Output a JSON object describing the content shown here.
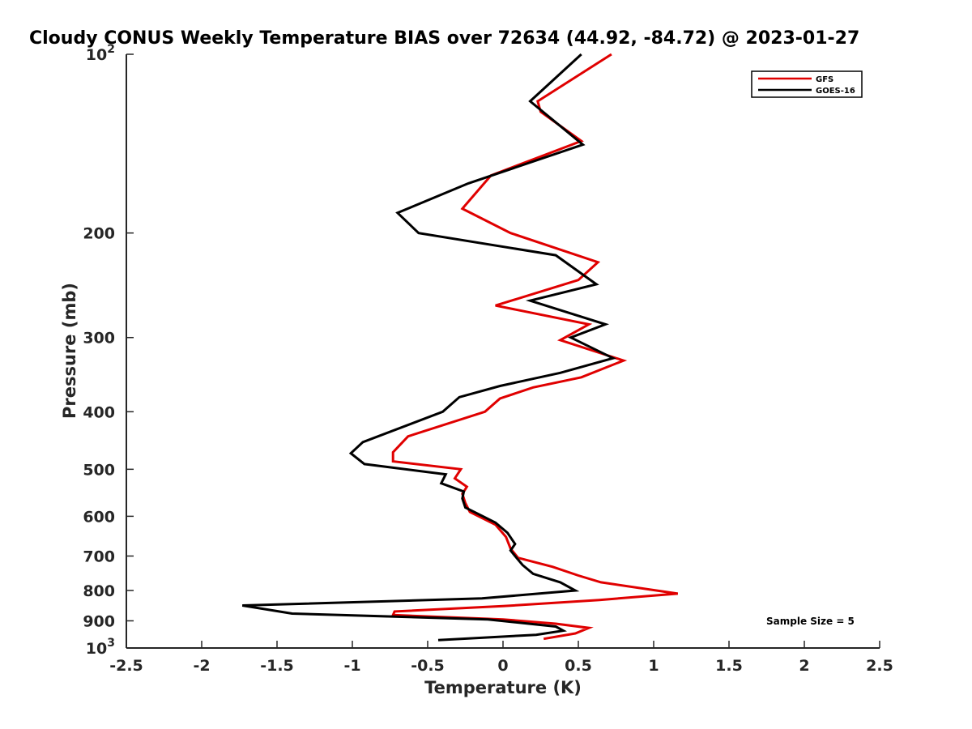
{
  "chart_data": {
    "type": "line",
    "title": "Cloudy CONUS Weekly Temperature BIAS over 72634 (44.92, -84.72) @ 2023-01-27",
    "xlabel": "Temperature (K)",
    "ylabel": "Pressure (mb)",
    "xlim": [
      -2.5,
      2.5
    ],
    "ylim": [
      100,
      1000
    ],
    "yscale": "log",
    "yreversed": true,
    "grid": false,
    "legend_position": "top-right",
    "x_ticks": [
      -2.5,
      -2,
      -1.5,
      -1,
      -0.5,
      0,
      0.5,
      1,
      1.5,
      2,
      2.5
    ],
    "x_tick_labels": [
      "-2.5",
      "-2",
      "-1.5",
      "-1",
      "-0.5",
      "0",
      "0.5",
      "1",
      "1.5",
      "2",
      "2.5"
    ],
    "y_ticks": [
      {
        "value": 100,
        "base": "10",
        "exp": "2"
      },
      {
        "value": 200,
        "label": "200"
      },
      {
        "value": 300,
        "label": "300"
      },
      {
        "value": 400,
        "label": "400"
      },
      {
        "value": 500,
        "label": "500"
      },
      {
        "value": 600,
        "label": "600"
      },
      {
        "value": 700,
        "label": "700"
      },
      {
        "value": 800,
        "label": "800"
      },
      {
        "value": 900,
        "label": "900"
      },
      {
        "value": 1000,
        "base": "10",
        "exp": "3"
      }
    ],
    "annotation": "Sample Size = 5",
    "series": [
      {
        "name": "GFS",
        "color": "#e00000",
        "points": [
          [
            0.72,
            100
          ],
          [
            0.23,
            120
          ],
          [
            0.25,
            125
          ],
          [
            0.52,
            140
          ],
          [
            -0.08,
            160
          ],
          [
            -0.27,
            182
          ],
          [
            0.05,
            200
          ],
          [
            0.63,
            224
          ],
          [
            0.5,
            240
          ],
          [
            -0.05,
            265
          ],
          [
            0.57,
            285
          ],
          [
            0.38,
            303
          ],
          [
            0.8,
            328
          ],
          [
            0.52,
            350
          ],
          [
            0.2,
            364
          ],
          [
            -0.02,
            380
          ],
          [
            -0.12,
            400
          ],
          [
            -0.63,
            440
          ],
          [
            -0.73,
            468
          ],
          [
            -0.73,
            485
          ],
          [
            -0.28,
            500
          ],
          [
            -0.32,
            518
          ],
          [
            -0.24,
            535
          ],
          [
            -0.27,
            550
          ],
          [
            -0.25,
            570
          ],
          [
            -0.22,
            590
          ],
          [
            -0.05,
            620
          ],
          [
            0.02,
            650
          ],
          [
            0.05,
            680
          ],
          [
            0.1,
            705
          ],
          [
            0.33,
            730
          ],
          [
            0.5,
            755
          ],
          [
            0.65,
            775
          ],
          [
            1.16,
            810
          ],
          [
            0.64,
            830
          ],
          [
            0.0,
            850
          ],
          [
            -0.72,
            868
          ],
          [
            -0.73,
            880
          ],
          [
            0.0,
            895
          ],
          [
            0.35,
            910
          ],
          [
            0.57,
            925
          ],
          [
            0.48,
            945
          ],
          [
            0.27,
            965
          ]
        ]
      },
      {
        "name": "GOES-16",
        "color": "#000000",
        "points": [
          [
            0.52,
            100
          ],
          [
            0.18,
            120
          ],
          [
            0.53,
            142
          ],
          [
            -0.23,
            165
          ],
          [
            -0.7,
            185
          ],
          [
            -0.56,
            200
          ],
          [
            0.35,
            218
          ],
          [
            0.62,
            244
          ],
          [
            0.18,
            260
          ],
          [
            0.68,
            285
          ],
          [
            0.45,
            300
          ],
          [
            0.73,
            325
          ],
          [
            0.38,
            344
          ],
          [
            -0.02,
            362
          ],
          [
            -0.29,
            378
          ],
          [
            -0.4,
            400
          ],
          [
            -0.93,
            450
          ],
          [
            -1.01,
            470
          ],
          [
            -0.92,
            490
          ],
          [
            -0.38,
            510
          ],
          [
            -0.41,
            528
          ],
          [
            -0.26,
            545
          ],
          [
            -0.27,
            560
          ],
          [
            -0.25,
            580
          ],
          [
            -0.05,
            615
          ],
          [
            0.03,
            640
          ],
          [
            0.08,
            668
          ],
          [
            0.05,
            685
          ],
          [
            0.09,
            705
          ],
          [
            0.13,
            725
          ],
          [
            0.2,
            750
          ],
          [
            0.38,
            775
          ],
          [
            0.48,
            800
          ],
          [
            -0.14,
            825
          ],
          [
            -1.73,
            848
          ],
          [
            -1.4,
            875
          ],
          [
            -0.1,
            895
          ],
          [
            0.35,
            920
          ],
          [
            0.4,
            935
          ],
          [
            0.22,
            950
          ],
          [
            -0.43,
            970
          ]
        ]
      }
    ]
  }
}
